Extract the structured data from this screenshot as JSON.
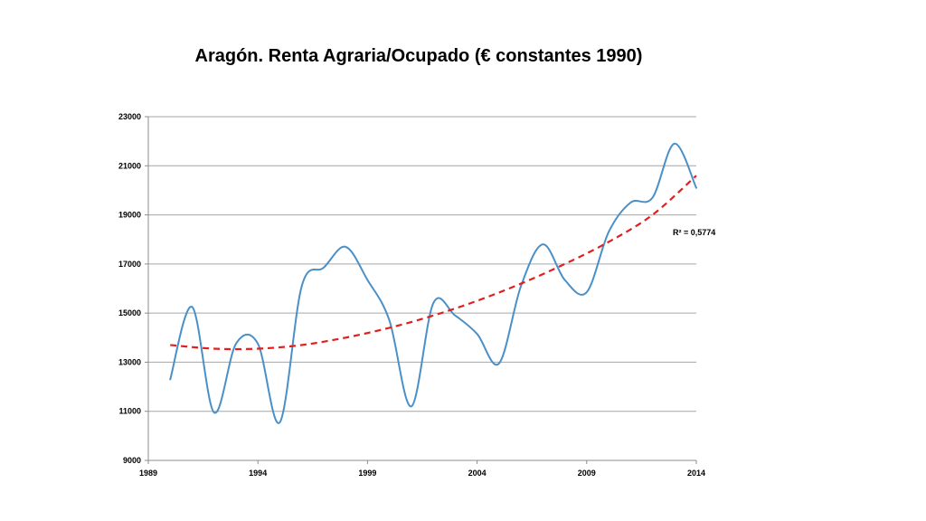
{
  "chart_data": {
    "type": "line",
    "title": "Aragón. Renta Agraria/Ocupado (€ constantes  1990)",
    "xlabel": "",
    "ylabel": "",
    "xlim": [
      1989,
      2014
    ],
    "ylim": [
      9000,
      23000
    ],
    "x_ticks": [
      "1989",
      "1994",
      "1999",
      "2004",
      "2009",
      "2014"
    ],
    "y_ticks": [
      "9000",
      "11000",
      "13000",
      "15000",
      "17000",
      "19000",
      "21000",
      "23000"
    ],
    "grid": "horizontal",
    "series": [
      {
        "color": "#4a90c8",
        "x": [
          1990,
          1991,
          1992,
          1993,
          1994,
          1995,
          1996,
          1997,
          1998,
          1999,
          2000,
          2001,
          2002,
          2003,
          2004,
          2005,
          2006,
          2007,
          2008,
          2009,
          2010,
          2011,
          2012,
          2013,
          2014
        ],
        "y": [
          12300,
          15250,
          10950,
          13750,
          13750,
          10550,
          16100,
          16850,
          17700,
          16350,
          14700,
          11200,
          15400,
          14900,
          14150,
          12950,
          16100,
          17800,
          16350,
          15850,
          18300,
          19500,
          19700,
          21900,
          20100
        ]
      }
    ],
    "trendline": {
      "type": "polynomial",
      "color": "#e02020",
      "x": [
        1990,
        1992,
        1994,
        1996,
        1998,
        2000,
        2002,
        2004,
        2006,
        2008,
        2010,
        2012,
        2014
      ],
      "y": [
        13700,
        13550,
        13550,
        13700,
        14000,
        14400,
        14900,
        15500,
        16200,
        17000,
        17900,
        19000,
        20600
      ],
      "r2_label": "R² = 0,5774"
    }
  }
}
